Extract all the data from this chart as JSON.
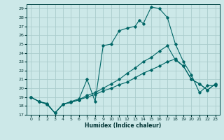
{
  "xlabel": "Humidex (Indice chaleur)",
  "bg_color": "#cce8e8",
  "grid_color": "#aacccc",
  "line_color": "#006666",
  "xlim": [
    -0.5,
    23.5
  ],
  "ylim": [
    17,
    29.5
  ],
  "yticks": [
    17,
    18,
    19,
    20,
    21,
    22,
    23,
    24,
    25,
    26,
    27,
    28,
    29
  ],
  "xticks": [
    0,
    1,
    2,
    3,
    4,
    5,
    6,
    7,
    8,
    9,
    10,
    11,
    12,
    13,
    14,
    15,
    16,
    17,
    18,
    19,
    20,
    21,
    22,
    23
  ],
  "series1_x": [
    0,
    1,
    2,
    3,
    4,
    5,
    6,
    7,
    8,
    9,
    10,
    11,
    12,
    13,
    13.5,
    14,
    15,
    16,
    17,
    18,
    19,
    20,
    21,
    22,
    23
  ],
  "series1_y": [
    19.0,
    18.5,
    18.3,
    17.2,
    18.2,
    18.5,
    18.8,
    21.0,
    18.5,
    24.8,
    25.0,
    26.5,
    26.8,
    27.0,
    27.7,
    27.3,
    29.2,
    29.0,
    28.0,
    25.0,
    23.0,
    21.5,
    19.5,
    20.3,
    20.3
  ],
  "series2_x": [
    0,
    1,
    2,
    3,
    4,
    5,
    6,
    7,
    8,
    9,
    10,
    11,
    12,
    13,
    14,
    15,
    16,
    17,
    18,
    19,
    20,
    21,
    22,
    23
  ],
  "series2_y": [
    19.0,
    18.5,
    18.2,
    17.2,
    18.2,
    18.4,
    18.7,
    19.2,
    19.5,
    20.0,
    20.5,
    21.0,
    21.7,
    22.3,
    23.0,
    23.5,
    24.2,
    24.8,
    23.2,
    22.5,
    21.0,
    20.5,
    19.8,
    20.5
  ],
  "series3_x": [
    0,
    1,
    2,
    3,
    4,
    5,
    6,
    7,
    8,
    9,
    10,
    11,
    12,
    13,
    14,
    15,
    16,
    17,
    18,
    19,
    20,
    21,
    22,
    23
  ],
  "series3_y": [
    19.0,
    18.5,
    18.2,
    17.2,
    18.2,
    18.4,
    18.7,
    19.0,
    19.3,
    19.7,
    20.0,
    20.4,
    20.7,
    21.2,
    21.7,
    22.1,
    22.5,
    23.0,
    23.3,
    22.5,
    21.0,
    20.5,
    19.8,
    20.5
  ]
}
